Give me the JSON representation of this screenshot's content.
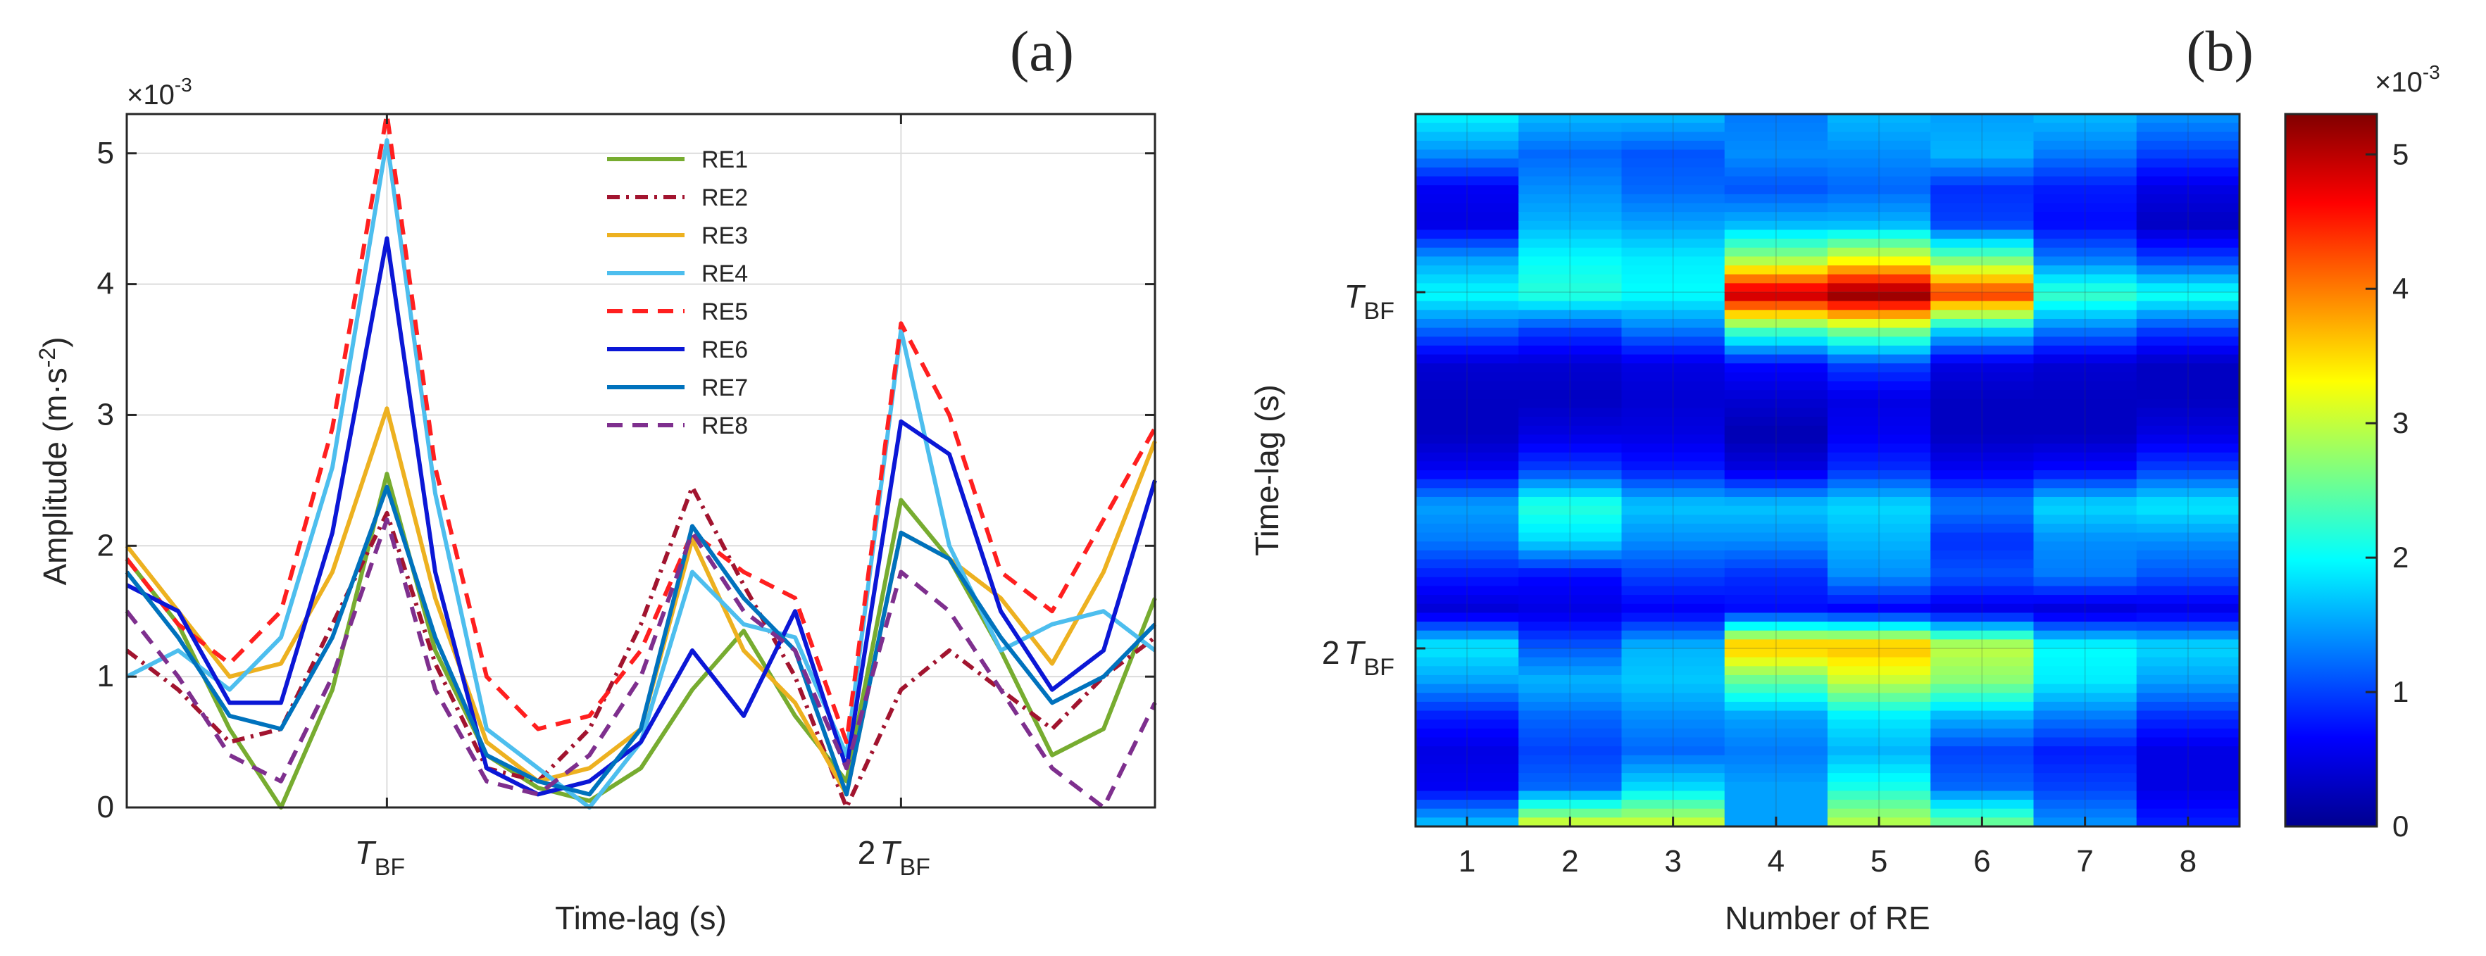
{
  "chart_data": [
    {
      "panel_label": "(a)",
      "type": "line",
      "xlabel": "Time-lag (s)",
      "ylabel_main": "Amplitude (m·s",
      "ylabel_sup": "-2",
      "ylabel_close": ")",
      "y_multiplier_base": "×10",
      "y_multiplier_exp": "-3",
      "ylim": [
        0,
        5.3
      ],
      "yticks": [
        0,
        1,
        2,
        3,
        4,
        5
      ],
      "xlim": [
        0,
        1
      ],
      "xticks": [
        {
          "x": 0.253,
          "main": "T",
          "sub": "BF"
        },
        {
          "x": 0.753,
          "main": "2",
          "main2": "T",
          "sub": "BF"
        }
      ],
      "x": [
        0.0,
        0.05,
        0.1,
        0.15,
        0.2,
        0.253,
        0.3,
        0.35,
        0.4,
        0.45,
        0.5,
        0.55,
        0.6,
        0.65,
        0.7,
        0.753,
        0.8,
        0.85,
        0.9,
        0.95,
        1.0
      ],
      "series": [
        {
          "name": "RE1",
          "color": "#77ac30",
          "dash": "",
          "values": [
            1.9,
            1.4,
            0.6,
            0.0,
            0.9,
            2.55,
            1.2,
            0.4,
            0.15,
            0.05,
            0.3,
            0.9,
            1.35,
            0.7,
            0.2,
            2.35,
            1.9,
            1.2,
            0.4,
            0.6,
            1.6
          ]
        },
        {
          "name": "RE2",
          "color": "#a2142f",
          "dash": "18,9,4,9",
          "values": [
            1.2,
            0.9,
            0.5,
            0.6,
            1.4,
            2.25,
            1.1,
            0.3,
            0.2,
            0.6,
            1.4,
            2.45,
            1.7,
            1.0,
            0.0,
            0.9,
            1.2,
            0.9,
            0.6,
            1.0,
            1.3
          ]
        },
        {
          "name": "RE3",
          "color": "#edb120",
          "dash": "",
          "values": [
            2.0,
            1.5,
            1.0,
            1.1,
            1.8,
            3.05,
            1.6,
            0.5,
            0.2,
            0.3,
            0.6,
            2.05,
            1.2,
            0.8,
            0.1,
            2.1,
            1.9,
            1.6,
            1.1,
            1.8,
            2.8
          ]
        },
        {
          "name": "RE4",
          "color": "#4dbeee",
          "dash": "",
          "values": [
            1.0,
            1.2,
            0.9,
            1.3,
            2.6,
            5.1,
            2.4,
            0.6,
            0.3,
            0.0,
            0.5,
            1.8,
            1.4,
            1.3,
            0.4,
            3.65,
            2.0,
            1.2,
            1.4,
            1.5,
            1.2
          ]
        },
        {
          "name": "RE5",
          "color": "#ff1f1f",
          "dash": "22,14",
          "values": [
            1.9,
            1.4,
            1.1,
            1.5,
            2.9,
            5.3,
            2.6,
            1.0,
            0.6,
            0.7,
            1.2,
            2.1,
            1.8,
            1.6,
            0.5,
            3.7,
            3.0,
            1.8,
            1.5,
            2.2,
            2.9
          ]
        },
        {
          "name": "RE6",
          "color": "#0b17d6",
          "dash": "",
          "values": [
            1.7,
            1.5,
            0.8,
            0.8,
            2.1,
            4.35,
            1.8,
            0.3,
            0.1,
            0.2,
            0.5,
            1.2,
            0.7,
            1.5,
            0.3,
            2.95,
            2.7,
            1.5,
            0.9,
            1.2,
            2.5
          ]
        },
        {
          "name": "RE7",
          "color": "#0072bd",
          "dash": "",
          "values": [
            1.8,
            1.3,
            0.7,
            0.6,
            1.3,
            2.45,
            1.3,
            0.4,
            0.2,
            0.1,
            0.6,
            2.15,
            1.6,
            1.2,
            0.1,
            2.1,
            1.9,
            1.3,
            0.8,
            1.0,
            1.4
          ]
        },
        {
          "name": "RE8",
          "color": "#7e2f8e",
          "dash": "22,14",
          "values": [
            1.5,
            1.0,
            0.4,
            0.2,
            1.0,
            2.2,
            0.9,
            0.2,
            0.1,
            0.4,
            1.0,
            2.1,
            1.5,
            1.2,
            0.3,
            1.8,
            1.5,
            0.9,
            0.3,
            0.0,
            0.8
          ]
        }
      ]
    },
    {
      "panel_label": "(b)",
      "type": "heatmap",
      "xlabel": "Number of RE",
      "ylabel": "Time-lag (s)",
      "colormap": "jet",
      "clim": [
        0,
        5.3
      ],
      "colorbar_ticks": [
        0,
        1,
        2,
        3,
        4,
        5
      ],
      "colorbar_multiplier_base": "×10",
      "colorbar_multiplier_exp": "-3",
      "categories": [
        "1",
        "2",
        "3",
        "4",
        "5",
        "6",
        "7",
        "8"
      ],
      "time_lag_range": [
        0,
        1
      ],
      "yticks": [
        {
          "t": 0.25,
          "main": "T",
          "sub": "BF"
        },
        {
          "t": 0.75,
          "main": "2",
          "main2": "T",
          "sub": "BF"
        }
      ],
      "rows_per_column": 21,
      "values": [
        [
          1.9,
          1.4,
          0.6,
          0.5,
          1.5,
          2.0,
          1.2,
          0.4,
          0.3,
          0.3,
          0.6,
          1.5,
          1.3,
          0.8,
          0.4,
          1.9,
          1.5,
          0.8,
          0.5,
          0.6,
          1.6
        ],
        [
          1.6,
          1.2,
          1.4,
          1.6,
          2.0,
          2.2,
          1.0,
          0.4,
          0.3,
          0.5,
          1.0,
          2.2,
          1.8,
          0.7,
          0.5,
          1.1,
          1.6,
          1.2,
          1.0,
          1.2,
          3.0
        ],
        [
          1.6,
          1.1,
          1.2,
          1.5,
          1.9,
          2.0,
          1.3,
          0.5,
          0.4,
          0.5,
          0.8,
          1.7,
          1.4,
          1.0,
          0.6,
          1.6,
          1.7,
          1.4,
          1.2,
          1.8,
          3.0
        ],
        [
          1.3,
          1.4,
          1.1,
          1.6,
          2.8,
          5.0,
          2.4,
          0.7,
          0.4,
          0.2,
          0.5,
          1.7,
          1.4,
          0.9,
          0.7,
          3.7,
          2.5,
          1.5,
          1.3,
          1.5,
          1.5
        ],
        [
          1.6,
          1.4,
          1.2,
          1.6,
          3.2,
          5.3,
          2.7,
          1.0,
          0.5,
          0.6,
          0.9,
          1.8,
          1.6,
          1.4,
          0.6,
          3.7,
          3.0,
          1.9,
          1.6,
          2.1,
          2.9
        ],
        [
          1.5,
          1.6,
          0.9,
          1.0,
          2.6,
          4.4,
          1.8,
          0.5,
          0.3,
          0.3,
          0.6,
          1.3,
          0.9,
          1.1,
          0.5,
          3.0,
          2.7,
          1.6,
          1.0,
          1.2,
          2.5
        ],
        [
          1.6,
          1.3,
          0.8,
          0.7,
          1.3,
          2.3,
          1.3,
          0.4,
          0.3,
          0.3,
          0.7,
          1.8,
          1.4,
          1.3,
          0.4,
          2.0,
          1.9,
          1.3,
          0.8,
          1.0,
          1.4
        ],
        [
          1.4,
          1.0,
          0.5,
          0.3,
          1.0,
          2.1,
          1.0,
          0.3,
          0.3,
          0.5,
          1.0,
          1.9,
          1.4,
          1.1,
          0.5,
          1.8,
          1.5,
          0.9,
          0.5,
          0.5,
          0.8
        ]
      ]
    }
  ]
}
